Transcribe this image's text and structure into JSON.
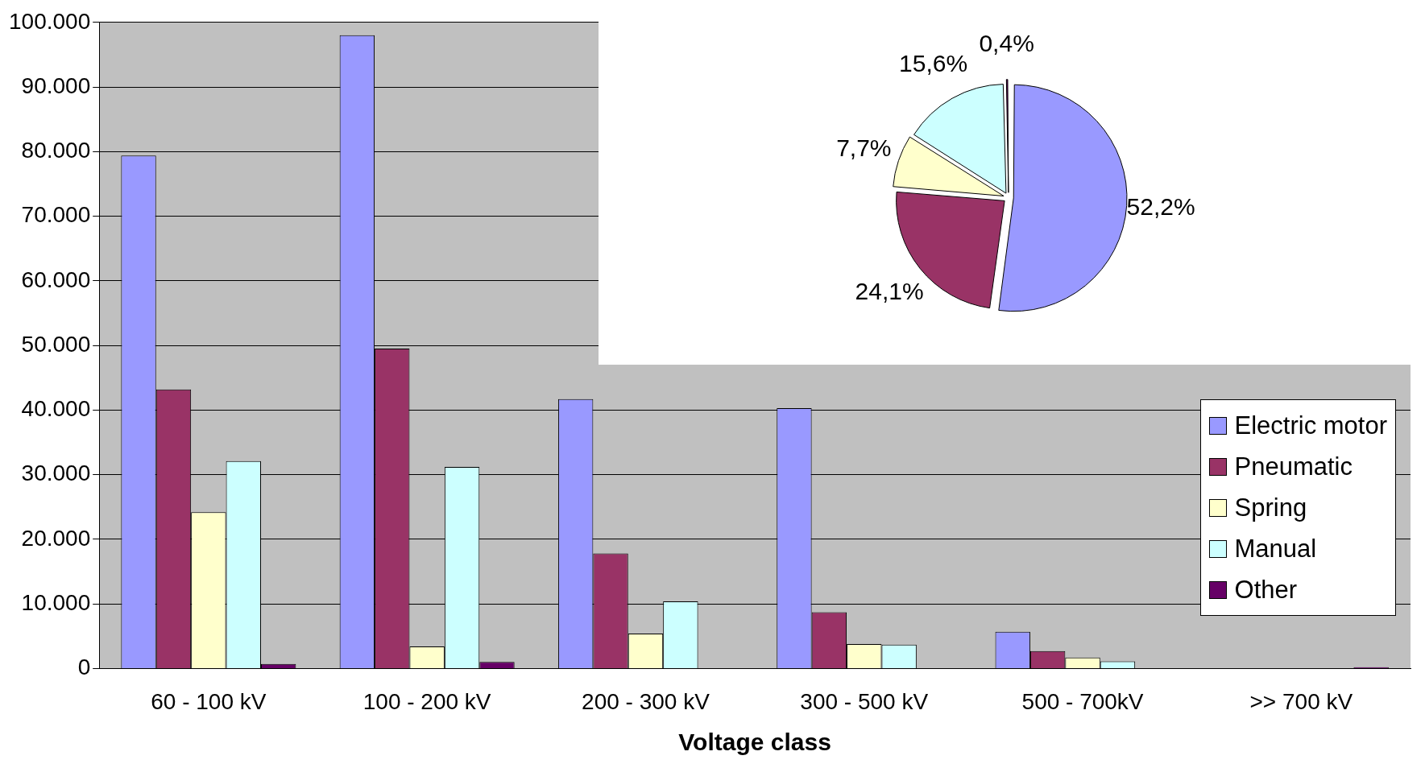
{
  "chart_data": [
    {
      "type": "bar",
      "xlabel": "Voltage class",
      "categories": [
        "60 - 100 kV",
        "100 - 200 kV",
        "200 - 300 kV",
        "300 - 500 kV",
        "500 - 700kV",
        ">> 700 kV"
      ],
      "series": [
        {
          "name": "Electric motor",
          "color": "#9999ff",
          "values": [
            79400,
            98000,
            41700,
            40300,
            5700,
            0
          ]
        },
        {
          "name": "Pneumatic",
          "color": "#993366",
          "values": [
            43200,
            49500,
            17800,
            8700,
            2700,
            0
          ]
        },
        {
          "name": "Spring",
          "color": "#ffffcc",
          "values": [
            24200,
            3400,
            5400,
            3800,
            1700,
            0
          ]
        },
        {
          "name": "Manual",
          "color": "#ccffff",
          "values": [
            32100,
            31200,
            10400,
            3700,
            1100,
            0
          ]
        },
        {
          "name": "Other",
          "color": "#660066",
          "values": [
            700,
            1000,
            0,
            0,
            0,
            200
          ]
        }
      ],
      "ylim": [
        0,
        100000
      ],
      "yticks": [
        {
          "value": 0,
          "label": "0"
        },
        {
          "value": 10000,
          "label": "10.000"
        },
        {
          "value": 20000,
          "label": "20.000"
        },
        {
          "value": 30000,
          "label": "30.000"
        },
        {
          "value": 40000,
          "label": "40.000"
        },
        {
          "value": 50000,
          "label": "50.000"
        },
        {
          "value": 60000,
          "label": "60.000"
        },
        {
          "value": 70000,
          "label": "70.000"
        },
        {
          "value": 80000,
          "label": "80.000"
        },
        {
          "value": 90000,
          "label": "90.000"
        },
        {
          "value": 100000,
          "label": "100.000"
        }
      ],
      "grid": "y",
      "legend": "right"
    },
    {
      "type": "pie",
      "categories": [
        null,
        null,
        null,
        null,
        null
      ],
      "values": [
        52.2,
        24.1,
        7.7,
        15.6,
        0.4
      ],
      "colors": [
        "#9999ff",
        "#993366",
        "#ffffcc",
        "#ccffff",
        "#660066"
      ],
      "value_labels": [
        "52,2%",
        "24,1%",
        "7,7%",
        "15,6%",
        "0,4%"
      ]
    }
  ]
}
